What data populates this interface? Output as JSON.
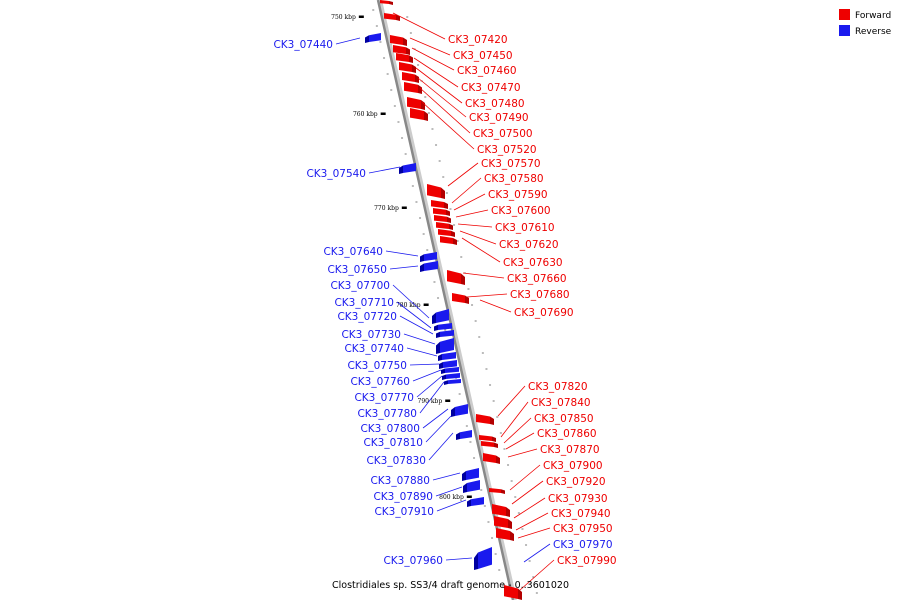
{
  "colors": {
    "forward": "#ee0000",
    "reverse": "#1a1aee",
    "backbone": "#888888"
  },
  "legend": {
    "forward_label": "Forward",
    "reverse_label": "Reverse"
  },
  "caption": "Clostridiales sp. SS3/4 draft genome - 0..3601020",
  "ticks": [
    "750 kbp",
    "760 kbp",
    "770 kbp",
    "780 kbp",
    "790 kbp",
    "800 kbp"
  ],
  "forward_genes": [
    "CK3_07420",
    "CK3_07450",
    "CK3_07460",
    "CK3_07470",
    "CK3_07480",
    "CK3_07490",
    "CK3_07500",
    "CK3_07520",
    "CK3_07570",
    "CK3_07580",
    "CK3_07590",
    "CK3_07600",
    "CK3_07610",
    "CK3_07620",
    "CK3_07630",
    "CK3_07660",
    "CK3_07680",
    "CK3_07690",
    "CK3_07820",
    "CK3_07840",
    "CK3_07850",
    "CK3_07860",
    "CK3_07870",
    "CK3_07900",
    "CK3_07920",
    "CK3_07930",
    "CK3_07940",
    "CK3_07950",
    "CK3_07990"
  ],
  "reverse_genes": [
    "CK3_07440",
    "CK3_07540",
    "CK3_07640",
    "CK3_07650",
    "CK3_07700",
    "CK3_07710",
    "CK3_07720",
    "CK3_07730",
    "CK3_07740",
    "CK3_07750",
    "CK3_07760",
    "CK3_07770",
    "CK3_07780",
    "CK3_07800",
    "CK3_07810",
    "CK3_07830",
    "CK3_07880",
    "CK3_07890",
    "CK3_07910",
    "CK3_07960",
    "CK3_07970"
  ]
}
